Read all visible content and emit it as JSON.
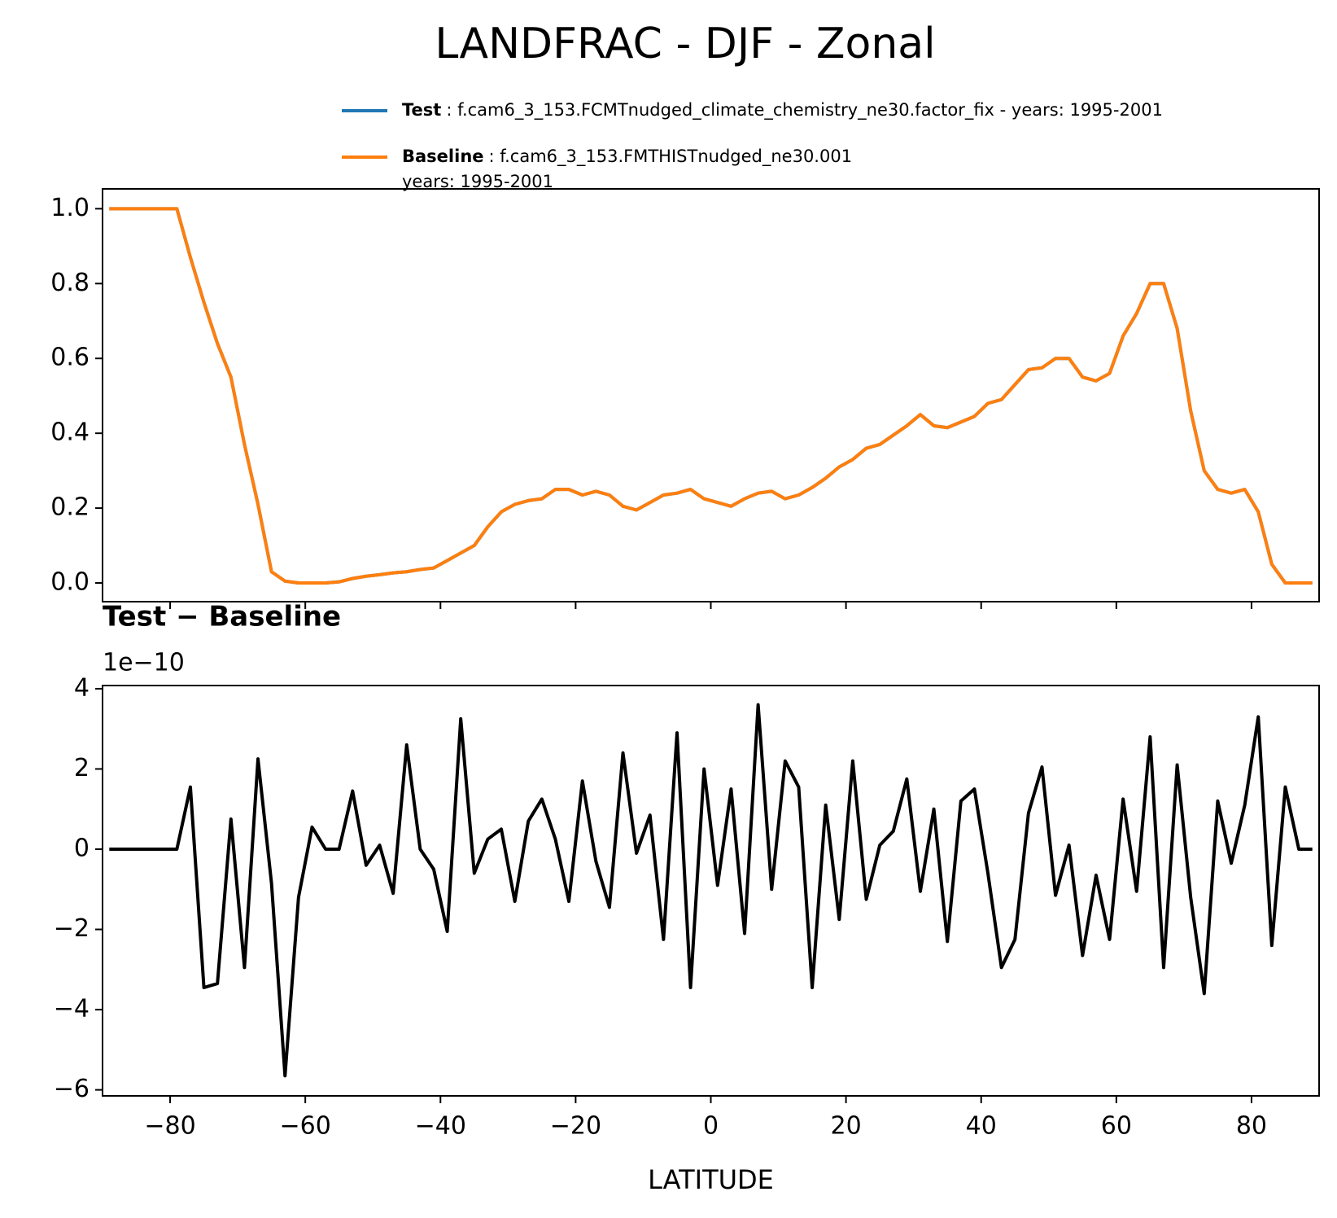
{
  "title": "LANDFRAC - DJF - Zonal",
  "chart_data": [
    {
      "type": "line",
      "x": [
        -89,
        -87,
        -85,
        -83,
        -81,
        -79,
        -77,
        -75,
        -73,
        -71,
        -69,
        -67,
        -65,
        -63,
        -61,
        -59,
        -57,
        -55,
        -53,
        -51,
        -49,
        -47,
        -45,
        -43,
        -41,
        -39,
        -37,
        -35,
        -33,
        -31,
        -29,
        -27,
        -25,
        -23,
        -21,
        -19,
        -17,
        -15,
        -13,
        -11,
        -9,
        -7,
        -5,
        -3,
        -1,
        1,
        3,
        5,
        7,
        9,
        11,
        13,
        15,
        17,
        19,
        21,
        23,
        25,
        27,
        29,
        31,
        33,
        35,
        37,
        39,
        41,
        43,
        45,
        47,
        49,
        51,
        53,
        55,
        57,
        59,
        61,
        63,
        65,
        67,
        69,
        71,
        73,
        75,
        77,
        79,
        81,
        83,
        85,
        87,
        89
      ],
      "series": [
        {
          "name": "Test",
          "detail": ": f.cam6_3_153.FCMTnudged_climate_chemistry_ne30.factor_fix - years: 1995-2001",
          "color": "#1f77b4",
          "values": [
            1,
            1,
            1,
            1,
            1,
            1,
            0.87,
            0.75,
            0.64,
            0.55,
            0.37,
            0.21,
            0.03,
            0.005,
            0,
            0,
            0,
            0.003,
            0.012,
            0.018,
            0.022,
            0.027,
            0.03,
            0.036,
            0.04,
            0.06,
            0.08,
            0.1,
            0.15,
            0.19,
            0.21,
            0.22,
            0.225,
            0.25,
            0.25,
            0.235,
            0.245,
            0.235,
            0.205,
            0.195,
            0.215,
            0.235,
            0.24,
            0.25,
            0.225,
            0.215,
            0.205,
            0.225,
            0.24,
            0.245,
            0.225,
            0.235,
            0.255,
            0.28,
            0.31,
            0.33,
            0.36,
            0.37,
            0.395,
            0.42,
            0.45,
            0.42,
            0.415,
            0.43,
            0.445,
            0.48,
            0.49,
            0.53,
            0.57,
            0.575,
            0.6,
            0.6,
            0.55,
            0.54,
            0.56,
            0.66,
            0.72,
            0.8,
            0.8,
            0.68,
            0.46,
            0.3,
            0.25,
            0.24,
            0.25,
            0.19,
            0.05,
            0,
            0,
            0
          ]
        },
        {
          "name": "Baseline",
          "detail": ": f.cam6_3_153.FMTHISTnudged_ne30.001",
          "detail2": "years: 1995-2001",
          "color": "#ff7f0e",
          "values": [
            1,
            1,
            1,
            1,
            1,
            1,
            0.87,
            0.75,
            0.64,
            0.55,
            0.37,
            0.21,
            0.03,
            0.005,
            0,
            0,
            0,
            0.003,
            0.012,
            0.018,
            0.022,
            0.027,
            0.03,
            0.036,
            0.04,
            0.06,
            0.08,
            0.1,
            0.15,
            0.19,
            0.21,
            0.22,
            0.225,
            0.25,
            0.25,
            0.235,
            0.245,
            0.235,
            0.205,
            0.195,
            0.215,
            0.235,
            0.24,
            0.25,
            0.225,
            0.215,
            0.205,
            0.225,
            0.24,
            0.245,
            0.225,
            0.235,
            0.255,
            0.28,
            0.31,
            0.33,
            0.36,
            0.37,
            0.395,
            0.42,
            0.45,
            0.42,
            0.415,
            0.43,
            0.445,
            0.48,
            0.49,
            0.53,
            0.57,
            0.575,
            0.6,
            0.6,
            0.55,
            0.54,
            0.56,
            0.66,
            0.72,
            0.8,
            0.8,
            0.68,
            0.46,
            0.3,
            0.25,
            0.24,
            0.25,
            0.19,
            0.05,
            0,
            0,
            0
          ]
        }
      ],
      "xlim": [
        -90,
        90
      ],
      "xticks": [
        -80,
        -60,
        -40,
        -20,
        0,
        20,
        40,
        60,
        80
      ],
      "show_xticklabels": false,
      "ylim": [
        -0.05,
        1.053
      ],
      "yticks": [
        {
          "value": 0,
          "label": "0.0"
        },
        0.2,
        0.4,
        0.6,
        0.8,
        {
          "value": 1,
          "label": "1.0"
        }
      ]
    },
    {
      "type": "line",
      "title": "Test − Baseline",
      "offset_label": "1e−10",
      "xlabel": "LATITUDE",
      "color": "#000000",
      "x": [
        -89,
        -87,
        -85,
        -83,
        -81,
        -79,
        -77,
        -75,
        -73,
        -71,
        -69,
        -67,
        -65,
        -63,
        -61,
        -59,
        -57,
        -55,
        -53,
        -51,
        -49,
        -47,
        -45,
        -43,
        -41,
        -39,
        -37,
        -35,
        -33,
        -31,
        -29,
        -27,
        -25,
        -23,
        -21,
        -19,
        -17,
        -15,
        -13,
        -11,
        -9,
        -7,
        -5,
        -3,
        -1,
        1,
        3,
        5,
        7,
        9,
        11,
        13,
        15,
        17,
        19,
        21,
        23,
        25,
        27,
        29,
        31,
        33,
        35,
        37,
        39,
        41,
        43,
        45,
        47,
        49,
        51,
        53,
        55,
        57,
        59,
        61,
        63,
        65,
        67,
        69,
        71,
        73,
        75,
        77,
        79,
        81,
        83,
        85,
        87,
        89
      ],
      "values": [
        0,
        0,
        0,
        0,
        0,
        0,
        1.55,
        -3.45,
        -3.35,
        0.75,
        -2.95,
        2.25,
        -0.85,
        -5.65,
        -1.2,
        0.55,
        0,
        0,
        1.45,
        -0.4,
        0.1,
        -1.1,
        2.6,
        0,
        -0.5,
        -2.05,
        3.25,
        -0.6,
        0.25,
        0.5,
        -1.3,
        0.7,
        1.25,
        0.25,
        -1.3,
        1.7,
        -0.3,
        -1.45,
        2.4,
        -0.1,
        0.85,
        -2.25,
        2.9,
        -3.45,
        2.0,
        -0.9,
        1.5,
        -2.1,
        3.6,
        -1.0,
        2.2,
        1.55,
        -3.45,
        1.1,
        -1.75,
        2.2,
        -1.25,
        0.1,
        0.45,
        1.75,
        -1.05,
        1.0,
        -2.3,
        1.2,
        1.5,
        -0.6,
        -2.95,
        -2.25,
        0.9,
        2.05,
        -1.15,
        0.1,
        -2.65,
        -0.65,
        -2.25,
        1.25,
        -1.05,
        2.8,
        -2.95,
        2.1,
        -1.2,
        -3.6,
        1.2,
        -0.35,
        1.1,
        3.3,
        -2.4,
        1.55,
        0,
        0
      ],
      "xlim": [
        -90,
        90
      ],
      "xticks": [
        {
          "value": -80,
          "label": "−80"
        },
        {
          "value": -60,
          "label": "−60"
        },
        {
          "value": -40,
          "label": "−40"
        },
        {
          "value": -20,
          "label": "−20"
        },
        0,
        20,
        40,
        60,
        80
      ],
      "show_xticklabels": true,
      "ylim": [
        -6.15,
        4.08
      ],
      "yticks": [
        {
          "value": -6,
          "label": "−6"
        },
        {
          "value": -4,
          "label": "−4"
        },
        {
          "value": -2,
          "label": "−2"
        },
        0,
        2,
        4
      ]
    }
  ]
}
